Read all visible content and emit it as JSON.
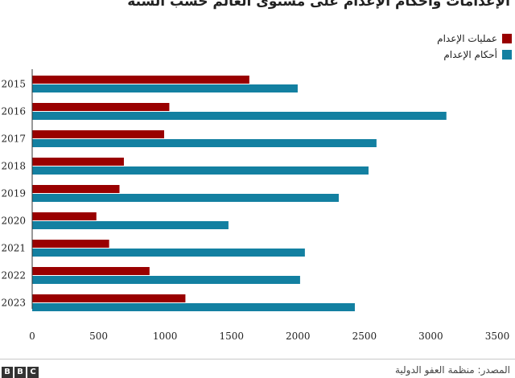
{
  "chart_data": {
    "type": "bar",
    "orientation": "horizontal",
    "title": "الإعدامات وأحكام الإعدام على مستوى العالم حسب السنة",
    "categories": [
      "2015",
      "2016",
      "2017",
      "2018",
      "2019",
      "2020",
      "2021",
      "2022",
      "2023"
    ],
    "series": [
      {
        "name": "عمليات الإعدام",
        "color": "#990000",
        "values": [
          1634,
          1032,
          993,
          690,
          657,
          483,
          579,
          883,
          1153
        ]
      },
      {
        "name": "أحكام الإعدام",
        "color": "#1380a1",
        "values": [
          1998,
          3117,
          2591,
          2531,
          2307,
          1477,
          2052,
          2016,
          2428
        ]
      }
    ],
    "xlim": [
      0,
      3500
    ],
    "xticks": [
      0,
      500,
      1000,
      1500,
      2000,
      2500,
      3000,
      3500
    ],
    "legend_position": "top-right",
    "grid": false
  },
  "footer": {
    "source": "المصدر: منظمة العفو الدولية",
    "logo_letters": [
      "B",
      "B",
      "C"
    ]
  }
}
